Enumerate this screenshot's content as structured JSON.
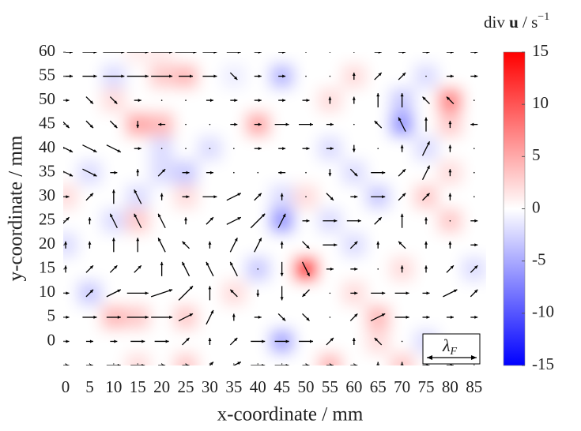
{
  "chart_data": {
    "type": "heatmap",
    "xlabel": "x-coordinate / mm",
    "ylabel": "y-coordinate / mm",
    "colorbar_label": {
      "prefix": "div",
      "vector": "u",
      "unit": "/ s",
      "exponent": "−1"
    },
    "legend_symbol": {
      "symbol": "λ",
      "subscript": "F"
    },
    "xlim": [
      -0.5,
      87.5
    ],
    "ylim": [
      -5,
      60
    ],
    "xticks": [
      0,
      5,
      10,
      15,
      20,
      25,
      30,
      35,
      40,
      45,
      50,
      55,
      60,
      65,
      70,
      75,
      80,
      85
    ],
    "yticks": [
      0,
      5,
      10,
      15,
      20,
      25,
      30,
      35,
      40,
      45,
      50,
      55,
      60
    ],
    "clim": [
      -15,
      15
    ],
    "cticks": [
      -15,
      -10,
      -5,
      0,
      5,
      10,
      15
    ],
    "colormap": [
      "#0000ff",
      "#ffffff",
      "#ff0000"
    ],
    "arrow_color": "#000000",
    "x": [
      0,
      5,
      10,
      15,
      20,
      25,
      30,
      35,
      40,
      45,
      50,
      55,
      60,
      65,
      70,
      75,
      80,
      85
    ],
    "y": [
      -5,
      0,
      5,
      10,
      15,
      20,
      25,
      30,
      35,
      40,
      45,
      50,
      55,
      60
    ],
    "z": [
      [
        0,
        0,
        0,
        2,
        0,
        3,
        0,
        0,
        0,
        0,
        0,
        4,
        0,
        0,
        3,
        0,
        0,
        0
      ],
      [
        0,
        0,
        0,
        0,
        0,
        0,
        0,
        0,
        0,
        -5,
        0,
        0,
        0,
        2,
        0,
        -2,
        0,
        0
      ],
      [
        0,
        0,
        4,
        3,
        0,
        3,
        0,
        0,
        0,
        0,
        0,
        0,
        0,
        4,
        0,
        0,
        0,
        0
      ],
      [
        0,
        -3,
        0,
        0,
        0,
        0,
        0,
        2,
        0,
        0,
        0,
        0,
        2,
        0,
        0,
        0,
        0,
        0
      ],
      [
        0,
        0,
        0,
        0,
        0,
        0,
        0,
        0,
        -3,
        0,
        12,
        0,
        0,
        0,
        2,
        0,
        0,
        -2
      ],
      [
        -2,
        0,
        0,
        0,
        0,
        0,
        0,
        0,
        0,
        0,
        0,
        0,
        -2,
        0,
        0,
        0,
        0,
        0
      ],
      [
        0,
        0,
        -2,
        3,
        0,
        0,
        0,
        0,
        0,
        -6,
        0,
        -2,
        0,
        0,
        0,
        0,
        3,
        0
      ],
      [
        2,
        0,
        0,
        -2,
        0,
        2,
        0,
        0,
        0,
        -2,
        2,
        0,
        0,
        -3,
        0,
        3,
        0,
        0
      ],
      [
        0,
        -2,
        0,
        0,
        -2,
        -3,
        0,
        0,
        0,
        0,
        0,
        0,
        -2,
        0,
        0,
        0,
        2,
        0
      ],
      [
        0,
        0,
        0,
        0,
        -2,
        0,
        -2,
        0,
        0,
        0,
        0,
        -2,
        0,
        0,
        0,
        -2,
        0,
        0
      ],
      [
        0,
        0,
        0,
        5,
        4,
        0,
        0,
        0,
        5,
        0,
        0,
        0,
        0,
        0,
        -6,
        0,
        3,
        0
      ],
      [
        0,
        0,
        2,
        0,
        0,
        0,
        0,
        0,
        0,
        0,
        0,
        2,
        0,
        0,
        -3,
        0,
        7,
        0
      ],
      [
        0,
        0,
        -2,
        0,
        3,
        4,
        0,
        -1,
        0,
        -4,
        0,
        0,
        2,
        0,
        0,
        -2,
        0,
        0
      ],
      [
        0,
        0,
        0,
        1,
        1,
        0,
        0,
        0,
        0,
        0,
        0,
        0,
        0,
        0,
        0,
        0,
        0,
        0
      ]
    ],
    "u": [
      [
        1,
        1,
        2,
        2,
        1,
        1,
        1,
        2,
        2,
        2,
        1,
        1,
        1,
        0,
        0,
        1,
        1,
        0
      ],
      [
        1,
        1,
        1,
        2,
        2,
        1,
        0,
        1,
        2,
        2,
        2,
        1,
        0,
        -1,
        0,
        1,
        1,
        0
      ],
      [
        1,
        2,
        2,
        3,
        3,
        2,
        1,
        0,
        1,
        1,
        1,
        0,
        1,
        2,
        2,
        1,
        1,
        1
      ],
      [
        1,
        1,
        2,
        3,
        3,
        2,
        0,
        -1,
        0,
        0,
        -1,
        0,
        1,
        2,
        2,
        1,
        2,
        1
      ],
      [
        0,
        1,
        1,
        1,
        0,
        -1,
        -1,
        -1,
        0,
        0,
        1,
        1,
        1,
        0,
        0,
        0,
        1,
        1
      ],
      [
        0,
        0,
        0,
        0,
        -1,
        -1,
        0,
        1,
        1,
        0,
        1,
        2,
        1,
        0,
        -1,
        0,
        0,
        1
      ],
      [
        1,
        0,
        -1,
        -1,
        -1,
        0,
        1,
        2,
        2,
        1,
        1,
        2,
        2,
        1,
        0,
        0,
        0,
        1
      ],
      [
        1,
        1,
        0,
        -1,
        0,
        1,
        2,
        2,
        1,
        0,
        0,
        1,
        1,
        2,
        1,
        1,
        0,
        0
      ],
      [
        2,
        2,
        1,
        0,
        1,
        1,
        1,
        0,
        0,
        -1,
        0,
        0,
        1,
        2,
        1,
        1,
        0,
        0
      ],
      [
        2,
        2,
        2,
        1,
        0,
        0,
        0,
        0,
        1,
        1,
        1,
        1,
        0,
        0,
        0,
        1,
        0,
        0
      ],
      [
        1,
        1,
        1,
        0,
        -1,
        0,
        0,
        1,
        1,
        2,
        2,
        1,
        0,
        -1,
        -1,
        0,
        0,
        -1
      ],
      [
        1,
        1,
        1,
        1,
        0,
        0,
        1,
        1,
        1,
        1,
        1,
        0,
        0,
        0,
        0,
        -1,
        -1,
        0
      ],
      [
        2,
        2,
        3,
        3,
        3,
        2,
        2,
        1,
        1,
        1,
        0,
        0,
        0,
        1,
        1,
        0,
        1,
        1
      ],
      [
        2,
        2,
        3,
        3,
        3,
        3,
        2,
        2,
        1,
        1,
        0,
        0,
        0,
        1,
        1,
        1,
        1,
        1
      ]
    ],
    "v": [
      [
        0,
        0,
        0,
        0,
        0,
        0,
        1,
        1,
        0,
        0,
        0,
        0,
        0,
        1,
        1,
        0,
        0,
        0
      ],
      [
        0,
        0,
        0,
        0,
        0,
        1,
        1,
        1,
        0,
        0,
        0,
        1,
        1,
        1,
        0,
        0,
        0,
        0
      ],
      [
        0,
        0,
        0,
        0,
        0,
        1,
        2,
        1,
        0,
        -1,
        -1,
        0,
        1,
        1,
        0,
        0,
        0,
        0
      ],
      [
        0,
        1,
        1,
        0,
        1,
        2,
        2,
        1,
        -1,
        -2,
        -1,
        0,
        0,
        0,
        0,
        0,
        1,
        1
      ],
      [
        1,
        1,
        1,
        1,
        2,
        2,
        2,
        2,
        0,
        -2,
        -2,
        0,
        0,
        0,
        1,
        1,
        1,
        1
      ],
      [
        1,
        1,
        2,
        2,
        2,
        1,
        1,
        2,
        2,
        1,
        -1,
        0,
        1,
        1,
        1,
        1,
        1,
        0
      ],
      [
        1,
        1,
        2,
        2,
        2,
        1,
        1,
        1,
        2,
        2,
        0,
        0,
        0,
        1,
        2,
        1,
        0,
        0
      ],
      [
        0,
        1,
        2,
        2,
        1,
        0,
        0,
        1,
        1,
        1,
        0,
        -1,
        0,
        0,
        1,
        1,
        1,
        0
      ],
      [
        -1,
        -1,
        0,
        1,
        1,
        0,
        0,
        0,
        0,
        0,
        0,
        -1,
        -1,
        0,
        1,
        2,
        1,
        0
      ],
      [
        -1,
        -1,
        -1,
        0,
        0,
        0,
        0,
        0,
        0,
        0,
        0,
        0,
        -1,
        0,
        1,
        2,
        1,
        0
      ],
      [
        -1,
        -1,
        -1,
        -1,
        0,
        0,
        0,
        0,
        0,
        0,
        0,
        0,
        0,
        1,
        2,
        2,
        1,
        0
      ],
      [
        0,
        -1,
        -1,
        0,
        0,
        0,
        0,
        0,
        0,
        0,
        0,
        1,
        1,
        2,
        2,
        1,
        1,
        0
      ],
      [
        0,
        0,
        0,
        0,
        0,
        0,
        0,
        -1,
        0,
        0,
        0,
        0,
        1,
        1,
        1,
        0,
        0,
        0
      ],
      [
        0,
        0,
        0,
        0,
        0,
        0,
        0,
        0,
        0,
        0,
        0,
        0,
        0,
        0,
        0,
        0,
        0,
        0
      ]
    ]
  }
}
